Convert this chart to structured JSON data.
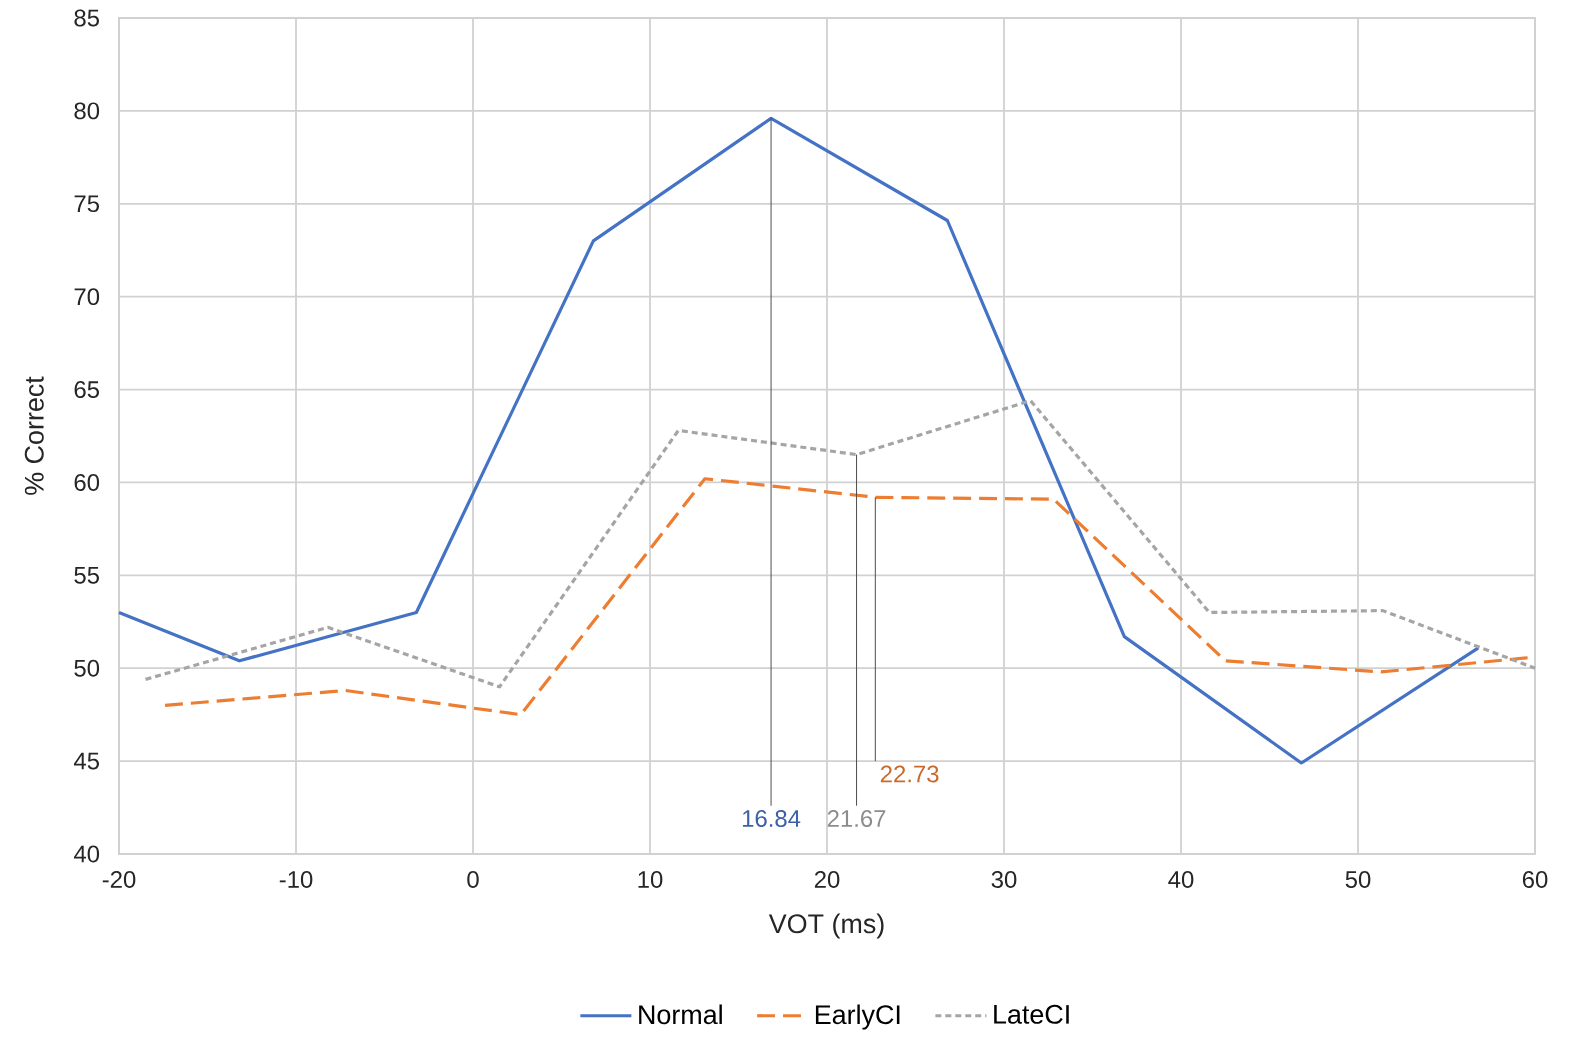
{
  "chart_data": {
    "type": "line",
    "xlabel": "VOT (ms)",
    "ylabel": "% Correct",
    "xlim": [
      -20,
      60
    ],
    "xticks": [
      -20,
      -10,
      0,
      10,
      20,
      30,
      40,
      50,
      60
    ],
    "ylim": [
      40,
      85
    ],
    "yticks": [
      40,
      45,
      50,
      55,
      60,
      65,
      70,
      75,
      80,
      85
    ],
    "grid": true,
    "legend": "bottom",
    "marker": "none",
    "series": [
      {
        "name": "Normal",
        "color": "#4472c4",
        "line_style": "solid",
        "x": [
          -20,
          -13.2,
          -3.2,
          6.8,
          16.84,
          26.8,
          36.8,
          46.8,
          56.8
        ],
        "values": [
          53.0,
          50.4,
          53.0,
          73.0,
          79.6,
          74.1,
          51.7,
          44.9,
          51.1
        ]
      },
      {
        "name": "EarlyCI",
        "color": "#ed7d31",
        "line_style": "dashed",
        "x": [
          -17.4,
          -7.2,
          2.7,
          13.1,
          22.73,
          32.8,
          42.5,
          51.3,
          60
        ],
        "values": [
          48.0,
          48.8,
          47.5,
          60.2,
          59.2,
          59.1,
          50.4,
          49.8,
          50.6
        ]
      },
      {
        "name": "LateCI",
        "color": "#a5a5a5",
        "line_style": "dotted",
        "x": [
          -18.5,
          -8.2,
          1.5,
          11.6,
          21.67,
          31.5,
          41.6,
          51.4,
          60
        ],
        "values": [
          49.4,
          52.2,
          49.0,
          62.8,
          61.5,
          64.4,
          53.0,
          53.1,
          50.0
        ]
      }
    ],
    "annotations": [
      {
        "text": "16.84",
        "x": 16.84,
        "y": 79.6
      },
      {
        "text": "21.67",
        "x": 21.67,
        "y": 61.5
      },
      {
        "text": "22.73",
        "x": 22.73,
        "y": 59.2
      }
    ]
  }
}
